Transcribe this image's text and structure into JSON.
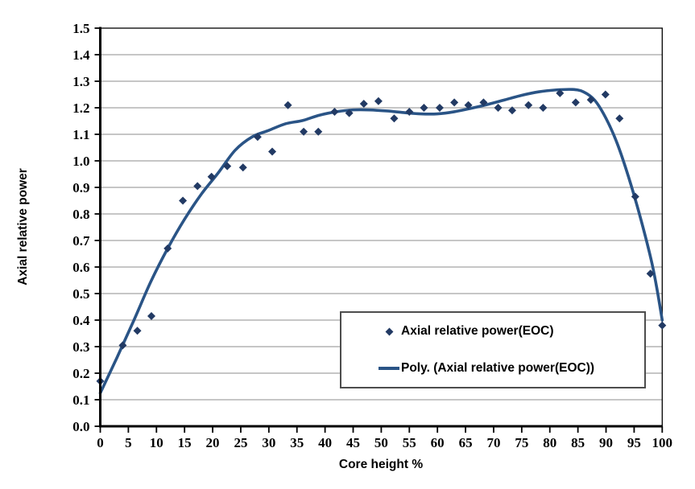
{
  "chart_data": {
    "type": "scatter",
    "title": "",
    "xlabel": "Core height %",
    "ylabel": "Axial relative power",
    "xlim": [
      0,
      100
    ],
    "ylim": [
      0.0,
      1.5
    ],
    "x_tick_step": 5,
    "y_tick_step": 0.1,
    "x_ticks": [
      "0",
      "5",
      "10",
      "15",
      "20",
      "25",
      "30",
      "35",
      "40",
      "45",
      "50",
      "55",
      "60",
      "65",
      "70",
      "75",
      "80",
      "85",
      "90",
      "95",
      "100"
    ],
    "y_ticks": [
      "0.0",
      "0.1",
      "0.2",
      "0.3",
      "0.4",
      "0.5",
      "0.6",
      "0.7",
      "0.8",
      "0.9",
      "1.0",
      "1.1",
      "1.2",
      "1.3",
      "1.4",
      "1.5"
    ],
    "grid": "horizontal-only",
    "legend_position": "inside-bottom-right",
    "series": [
      {
        "name": "Axial relative power(EOC)",
        "type": "scatter",
        "marker": "diamond",
        "color": "#223a64",
        "points": [
          [
            0,
            0.17
          ],
          [
            4,
            0.305
          ],
          [
            6.6,
            0.36
          ],
          [
            9.1,
            0.415
          ],
          [
            12,
            0.67
          ],
          [
            14.7,
            0.85
          ],
          [
            17.3,
            0.905
          ],
          [
            19.8,
            0.94
          ],
          [
            22.6,
            0.98
          ],
          [
            25.4,
            0.975
          ],
          [
            28,
            1.09
          ],
          [
            30.6,
            1.035
          ],
          [
            33.4,
            1.21
          ],
          [
            36.2,
            1.11
          ],
          [
            38.8,
            1.11
          ],
          [
            41.7,
            1.185
          ],
          [
            44.3,
            1.18
          ],
          [
            46.9,
            1.215
          ],
          [
            49.5,
            1.225
          ],
          [
            52.3,
            1.16
          ],
          [
            55,
            1.185
          ],
          [
            57.6,
            1.2
          ],
          [
            60.4,
            1.2
          ],
          [
            63,
            1.22
          ],
          [
            65.5,
            1.21
          ],
          [
            68.2,
            1.22
          ],
          [
            70.8,
            1.2
          ],
          [
            73.3,
            1.19
          ],
          [
            76.2,
            1.21
          ],
          [
            78.8,
            1.2
          ],
          [
            81.8,
            1.255
          ],
          [
            84.6,
            1.22
          ],
          [
            87.3,
            1.23
          ],
          [
            89.9,
            1.25
          ],
          [
            92.4,
            1.16
          ],
          [
            95.2,
            0.865
          ],
          [
            97.9,
            0.575
          ],
          [
            100,
            0.38
          ]
        ]
      },
      {
        "name": "Poly. (Axial relative power(EOC))",
        "type": "line",
        "color": "#2a5486",
        "points": [
          [
            0,
            0.125
          ],
          [
            3,
            0.26
          ],
          [
            6,
            0.4
          ],
          [
            9,
            0.545
          ],
          [
            12,
            0.67
          ],
          [
            15,
            0.78
          ],
          [
            18,
            0.875
          ],
          [
            21,
            0.955
          ],
          [
            24,
            1.04
          ],
          [
            27,
            1.09
          ],
          [
            30,
            1.115
          ],
          [
            33,
            1.14
          ],
          [
            36,
            1.152
          ],
          [
            39,
            1.172
          ],
          [
            42,
            1.185
          ],
          [
            45,
            1.192
          ],
          [
            48,
            1.192
          ],
          [
            51,
            1.188
          ],
          [
            54,
            1.182
          ],
          [
            57,
            1.177
          ],
          [
            60,
            1.177
          ],
          [
            63,
            1.185
          ],
          [
            66,
            1.198
          ],
          [
            69,
            1.213
          ],
          [
            72,
            1.23
          ],
          [
            75,
            1.247
          ],
          [
            78,
            1.26
          ],
          [
            81,
            1.267
          ],
          [
            84,
            1.269
          ],
          [
            86,
            1.26
          ],
          [
            88,
            1.228
          ],
          [
            90,
            1.16
          ],
          [
            92,
            1.065
          ],
          [
            94,
            0.94
          ],
          [
            96,
            0.795
          ],
          [
            98,
            0.63
          ],
          [
            99,
            0.525
          ],
          [
            100,
            0.4
          ]
        ]
      }
    ],
    "colors": {
      "marker": "#223a64",
      "trendline": "#2a5486",
      "gridline": "#b3b3b3",
      "axis": "#000000",
      "legend_border": "#4d4d4d",
      "background": "#ffffff"
    }
  }
}
